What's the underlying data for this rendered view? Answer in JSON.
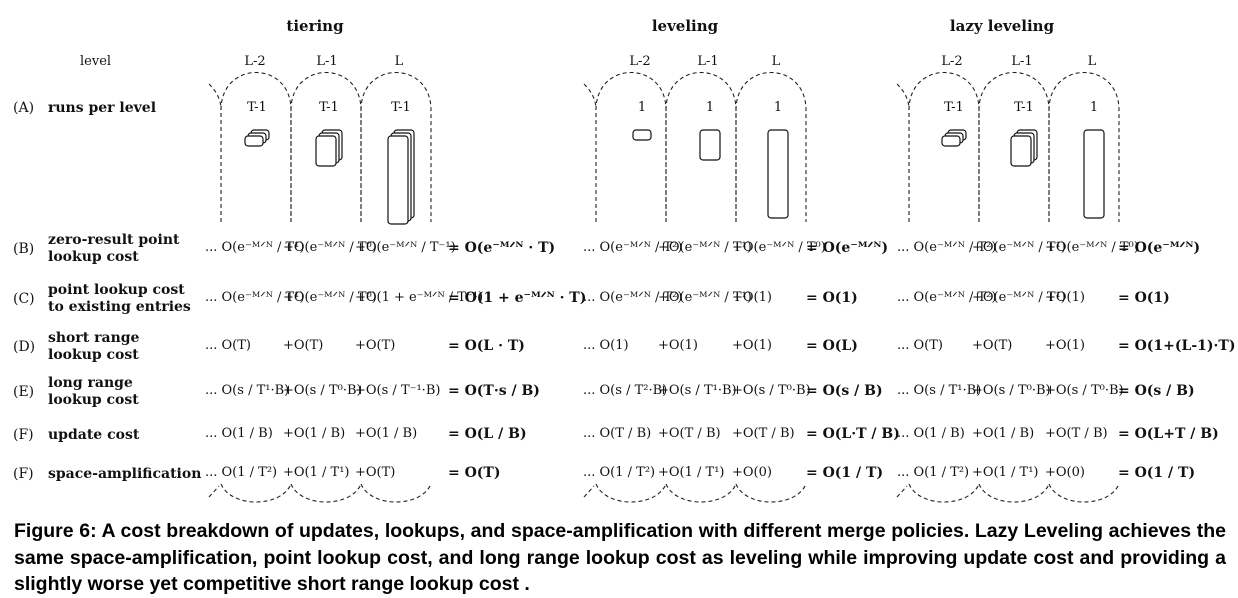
{
  "figure": {
    "policies": [
      "tiering",
      "leveling",
      "lazy leveling"
    ],
    "level_header": "level",
    "levels": [
      "L-2",
      "L-1",
      "L"
    ],
    "rows": [
      {
        "code": "(A)",
        "label": "runs per level"
      },
      {
        "code": "(B)",
        "label": "zero-result point\nlookup cost"
      },
      {
        "code": "(C)",
        "label": "point lookup cost\nto existing entries"
      },
      {
        "code": "(D)",
        "label": "short range\nlookup cost"
      },
      {
        "code": "(E)",
        "label": "long range\nlookup cost"
      },
      {
        "code": "(F)",
        "label": "update cost"
      },
      {
        "code": "(F)",
        "label": "space-amplification"
      }
    ],
    "runs_per_level": [
      [
        "T-1",
        "T-1",
        "T-1"
      ],
      [
        "1",
        "1",
        "1"
      ],
      [
        "T-1",
        "T-1",
        "1"
      ]
    ],
    "costs": [
      [
        [
          "... O(e^-M/N / T^1)",
          "+O(e^-M/N / T^0)",
          "+O(e^-M/N / T^-1)",
          "= O(e^-M/N · T)"
        ],
        [
          "... O(e^-M/N / T^1)",
          "+O(e^-M/N / T^0)",
          "+O(1 + e^-M/N / T^-1)",
          "= O(1 + e^-M/N · T)"
        ],
        [
          "... O(T)",
          "+O(T)",
          "+O(T)",
          "= O(L · T)"
        ],
        [
          "... O(s / T^1·B)",
          "+O(s / T^0·B)",
          "+O(s / T^-1·B)",
          "= O(T·s / B)"
        ],
        [
          "... O(1 / B)",
          "+O(1 / B)",
          "+O(1 / B)",
          "= O(L / B)"
        ],
        [
          "... O(1 / T^2)",
          "+O(1 / T^1)",
          "+O(T)",
          "= O(T)"
        ]
      ],
      [
        [
          "... O(e^-M/N / T^2)",
          "+O(e^-M/N / T^1)",
          "+O(e^-M/N / T^0)",
          "= O(e^-M/N)"
        ],
        [
          "... O(e^-M/N / T^2)",
          "+O(e^-M/N / T^1)",
          "+O(1)",
          "= O(1)"
        ],
        [
          "... O(1)",
          "+O(1)",
          "+O(1)",
          "= O(L)"
        ],
        [
          "... O(s / T^2·B)",
          "+O(s / T^1·B)",
          "+O(s / T^0·B)",
          "= O(s / B)"
        ],
        [
          "... O(T / B)",
          "+O(T / B)",
          "+O(T / B)",
          "= O(L·T / B)"
        ],
        [
          "... O(1 / T^2)",
          "+O(1 / T^1)",
          "+O(0)",
          "= O(1 / T)"
        ]
      ],
      [
        [
          "... O(e^-M/N / T^2)",
          "+O(e^-M/N / T^1)",
          "+O(e^-M/N / T^0)",
          "= O(e^-M/N)"
        ],
        [
          "... O(e^-M/N / T^2)",
          "+O(e^-M/N / T^1)",
          "+O(1)",
          "= O(1)"
        ],
        [
          "... O(T)",
          "+O(T)",
          "+O(1)",
          "= O(1+(L-1)·T)"
        ],
        [
          "... O(s / T^1·B)",
          "+O(s / T^0·B)",
          "+O(s / T^0·B)",
          "= O(s / B)"
        ],
        [
          "... O(1 / B)",
          "+O(1 / B)",
          "+O(T / B)",
          "= O(L+T / B)"
        ],
        [
          "... O(1 / T^2)",
          "+O(1 / T^1)",
          "+O(0)",
          "= O(1 / T)"
        ]
      ]
    ]
  },
  "caption": "Figure 6: A cost breakdown of updates, lookups, and space-amplification with different merge policies. Lazy Leveling achieves the same space-amplification, point lookup cost, and long range lookup cost as leveling while improving update cost and providing a slightly worse yet competitive short range lookup cost ."
}
